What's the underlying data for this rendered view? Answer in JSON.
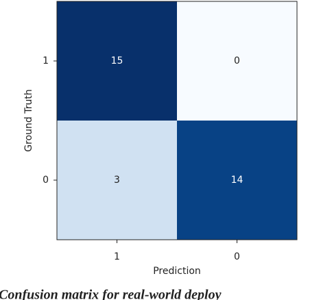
{
  "chart_data": {
    "type": "heatmap",
    "x_label": "Prediction",
    "y_label": "Ground Truth",
    "x_categories": [
      "1",
      "0"
    ],
    "y_categories": [
      "1",
      "0"
    ],
    "values": [
      [
        15,
        0
      ],
      [
        3,
        14
      ]
    ],
    "colormap": [
      "#f7fbff",
      "#deebf7",
      "#c6dbef",
      "#9ecae1",
      "#6baed6",
      "#4292c6",
      "#2171b5",
      "#08519c",
      "#08306b"
    ],
    "caption": "Confusion matrix for real-world deploy"
  }
}
